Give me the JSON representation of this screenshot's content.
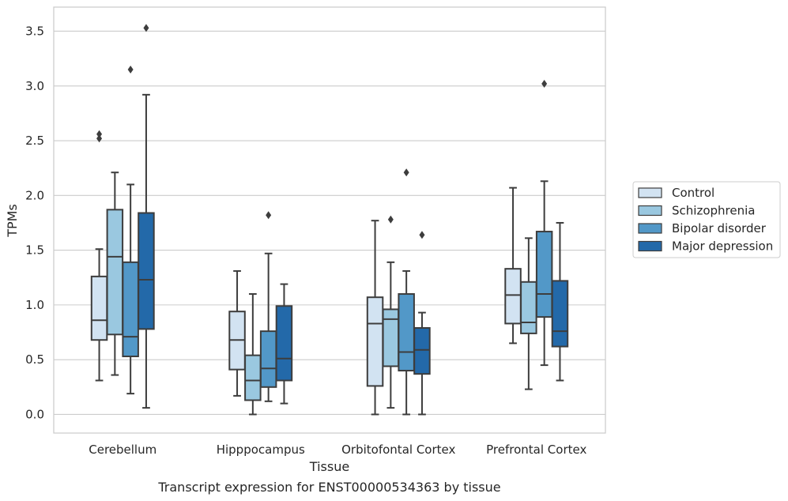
{
  "caption": "Transcript expression for ENST00000534363 by tissue",
  "chart_data": {
    "type": "box",
    "xlabel": "Tissue",
    "ylabel": "TPMs",
    "ylim": [
      -0.17,
      3.72
    ],
    "yticks": [
      "0.0",
      "0.5",
      "1.0",
      "1.5",
      "2.0",
      "2.5",
      "3.0",
      "3.5"
    ],
    "grid": "horizontal",
    "legend_position": "right",
    "categories": [
      "Cerebellum",
      "Hipppocampus",
      "Orbitofontal Cortex",
      "Prefrontal Cortex"
    ],
    "series": [
      {
        "name": "Control",
        "color": "#d2e3f2",
        "boxes": [
          {
            "whislo": 0.31,
            "q1": 0.68,
            "med": 0.86,
            "q3": 1.26,
            "whishi": 1.51,
            "fliers": [
              2.52,
              2.56
            ]
          },
          {
            "whislo": 0.17,
            "q1": 0.41,
            "med": 0.68,
            "q3": 0.94,
            "whishi": 1.31,
            "fliers": []
          },
          {
            "whislo": 0.0,
            "q1": 0.26,
            "med": 0.83,
            "q3": 1.07,
            "whishi": 1.77,
            "fliers": []
          },
          {
            "whislo": 0.65,
            "q1": 0.83,
            "med": 1.09,
            "q3": 1.33,
            "whishi": 2.07,
            "fliers": []
          }
        ]
      },
      {
        "name": "Schizophrenia",
        "color": "#9ac8e0",
        "boxes": [
          {
            "whislo": 0.36,
            "q1": 0.73,
            "med": 1.44,
            "q3": 1.87,
            "whishi": 2.21,
            "fliers": []
          },
          {
            "whislo": 0.0,
            "q1": 0.13,
            "med": 0.31,
            "q3": 0.54,
            "whishi": 1.1,
            "fliers": []
          },
          {
            "whislo": 0.06,
            "q1": 0.44,
            "med": 0.87,
            "q3": 0.96,
            "whishi": 1.39,
            "fliers": [
              1.78
            ]
          },
          {
            "whislo": 0.23,
            "q1": 0.74,
            "med": 0.84,
            "q3": 1.21,
            "whishi": 1.61,
            "fliers": []
          }
        ]
      },
      {
        "name": "Bipolar disorder",
        "color": "#5298c8",
        "boxes": [
          {
            "whislo": 0.19,
            "q1": 0.53,
            "med": 0.71,
            "q3": 1.39,
            "whishi": 2.1,
            "fliers": [
              3.15
            ]
          },
          {
            "whislo": 0.12,
            "q1": 0.25,
            "med": 0.42,
            "q3": 0.76,
            "whishi": 1.47,
            "fliers": [
              1.82
            ]
          },
          {
            "whislo": 0.0,
            "q1": 0.4,
            "med": 0.57,
            "q3": 1.1,
            "whishi": 1.31,
            "fliers": [
              2.21
            ]
          },
          {
            "whislo": 0.45,
            "q1": 0.89,
            "med": 1.1,
            "q3": 1.67,
            "whishi": 2.13,
            "fliers": [
              3.02
            ]
          }
        ]
      },
      {
        "name": "Major depression",
        "color": "#2369a9",
        "boxes": [
          {
            "whislo": 0.06,
            "q1": 0.78,
            "med": 1.23,
            "q3": 1.84,
            "whishi": 2.92,
            "fliers": [
              3.53
            ]
          },
          {
            "whislo": 0.1,
            "q1": 0.31,
            "med": 0.51,
            "q3": 0.99,
            "whishi": 1.19,
            "fliers": []
          },
          {
            "whislo": 0.0,
            "q1": 0.37,
            "med": 0.59,
            "q3": 0.79,
            "whishi": 0.93,
            "fliers": [
              1.64
            ]
          },
          {
            "whislo": 0.31,
            "q1": 0.62,
            "med": 0.76,
            "q3": 1.22,
            "whishi": 1.75,
            "fliers": []
          }
        ]
      }
    ]
  }
}
